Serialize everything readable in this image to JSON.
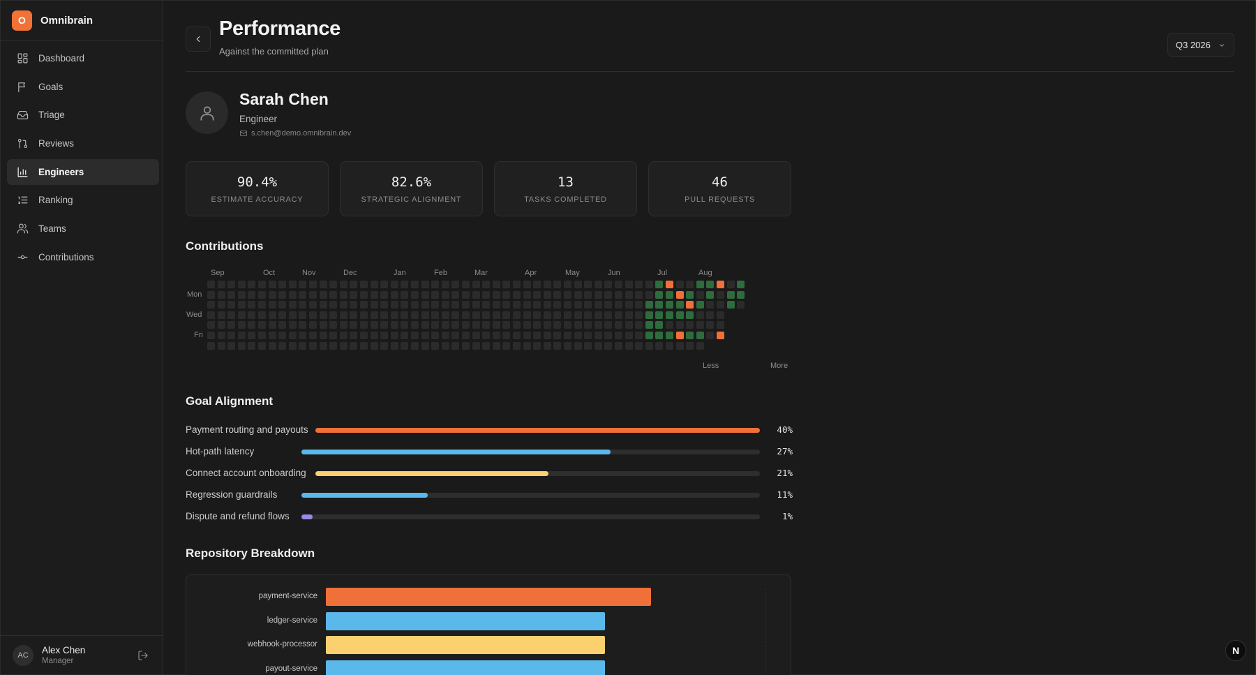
{
  "app": {
    "logo_letter": "O",
    "name": "Omnibrain"
  },
  "sidebar": {
    "items": [
      {
        "label": "Dashboard",
        "icon": "grid-icon",
        "active": false
      },
      {
        "label": "Goals",
        "icon": "flag-icon",
        "active": false
      },
      {
        "label": "Triage",
        "icon": "inbox-icon",
        "active": false
      },
      {
        "label": "Reviews",
        "icon": "git-pull-request-icon",
        "active": false
      },
      {
        "label": "Engineers",
        "icon": "bar-chart-icon",
        "active": true
      },
      {
        "label": "Ranking",
        "icon": "list-ordered-icon",
        "active": false
      },
      {
        "label": "Teams",
        "icon": "users-icon",
        "active": false
      },
      {
        "label": "Contributions",
        "icon": "git-commit-icon",
        "active": false
      }
    ],
    "user": {
      "initials": "AC",
      "name": "Alex Chen",
      "role": "Manager"
    }
  },
  "header": {
    "title": "Performance",
    "subtitle": "Against the committed plan",
    "period": "Q3 2026"
  },
  "profile": {
    "name": "Sarah Chen",
    "role": "Engineer",
    "email": "s.chen@demo.omnibrain.dev"
  },
  "stats": [
    {
      "value": "90.4%",
      "label": "Estimate Accuracy"
    },
    {
      "value": "82.6%",
      "label": "Strategic Alignment"
    },
    {
      "value": "13",
      "label": "Tasks Completed"
    },
    {
      "value": "46",
      "label": "Pull Requests"
    }
  ],
  "contributions": {
    "title": "Contributions",
    "months": [
      "Sep",
      "Oct",
      "Nov",
      "Dec",
      "Jan",
      "Feb",
      "Mar",
      "Apr",
      "May",
      "Jun",
      "Jul",
      "Aug"
    ],
    "day_labels": [
      "Mon",
      "Wed",
      "Fri"
    ],
    "legend_less": "Less",
    "legend_more": "More",
    "colors": {
      "empty": "#2b2b2b",
      "green": "#2e6b3d",
      "orange": "#ef7038"
    },
    "weeks": 52,
    "active_cells": [
      {
        "week": 43,
        "day": 2,
        "level": "green"
      },
      {
        "week": 43,
        "day": 3,
        "level": "green"
      },
      {
        "week": 43,
        "day": 4,
        "level": "green"
      },
      {
        "week": 43,
        "day": 5,
        "level": "green"
      },
      {
        "week": 44,
        "day": 0,
        "level": "green"
      },
      {
        "week": 44,
        "day": 1,
        "level": "green"
      },
      {
        "week": 44,
        "day": 2,
        "level": "green"
      },
      {
        "week": 44,
        "day": 3,
        "level": "green"
      },
      {
        "week": 44,
        "day": 4,
        "level": "green"
      },
      {
        "week": 44,
        "day": 5,
        "level": "green"
      },
      {
        "week": 45,
        "day": 0,
        "level": "orange"
      },
      {
        "week": 45,
        "day": 1,
        "level": "green"
      },
      {
        "week": 45,
        "day": 2,
        "level": "green"
      },
      {
        "week": 45,
        "day": 3,
        "level": "green"
      },
      {
        "week": 45,
        "day": 5,
        "level": "green"
      },
      {
        "week": 46,
        "day": 1,
        "level": "orange"
      },
      {
        "week": 46,
        "day": 2,
        "level": "green"
      },
      {
        "week": 46,
        "day": 3,
        "level": "green"
      },
      {
        "week": 46,
        "day": 5,
        "level": "orange"
      },
      {
        "week": 47,
        "day": 1,
        "level": "green"
      },
      {
        "week": 47,
        "day": 2,
        "level": "orange"
      },
      {
        "week": 47,
        "day": 3,
        "level": "green"
      },
      {
        "week": 47,
        "day": 5,
        "level": "green"
      },
      {
        "week": 48,
        "day": 0,
        "level": "green"
      },
      {
        "week": 48,
        "day": 2,
        "level": "green"
      },
      {
        "week": 48,
        "day": 5,
        "level": "green"
      },
      {
        "week": 49,
        "day": 0,
        "level": "green"
      },
      {
        "week": 49,
        "day": 1,
        "level": "green"
      },
      {
        "week": 50,
        "day": 0,
        "level": "orange"
      },
      {
        "week": 50,
        "day": 5,
        "level": "orange"
      },
      {
        "week": 51,
        "day": 1,
        "level": "green"
      },
      {
        "week": 51,
        "day": 2,
        "level": "green"
      },
      {
        "week": 52,
        "day": 0,
        "level": "green"
      },
      {
        "week": 52,
        "day": 1,
        "level": "green"
      }
    ]
  },
  "goal_alignment": {
    "title": "Goal Alignment",
    "items": [
      {
        "label": "Payment routing and payouts",
        "value": 40,
        "fill_fraction": 1.0,
        "color": "#ef7038"
      },
      {
        "label": "Hot-path latency",
        "value": 27,
        "fill_fraction": 0.675,
        "color": "#5bb8ea"
      },
      {
        "label": "Connect account onboarding",
        "value": 21,
        "fill_fraction": 0.525,
        "color": "#fbd06f"
      },
      {
        "label": "Regression guardrails",
        "value": 11,
        "fill_fraction": 0.275,
        "color": "#5bb8ea"
      },
      {
        "label": "Dispute and refund flows",
        "value": 1,
        "fill_fraction": 0.025,
        "color": "#9b88e8"
      }
    ]
  },
  "repository_breakdown": {
    "title": "Repository Breakdown",
    "items": [
      {
        "label": "payment-service",
        "value": 0.7,
        "color": "#ef7038"
      },
      {
        "label": "ledger-service",
        "value": 0.6,
        "color": "#5bb8ea"
      },
      {
        "label": "webhook-processor",
        "value": 0.6,
        "color": "#fbd06f"
      },
      {
        "label": "payout-service",
        "value": 0.6,
        "color": "#5bb8ea"
      }
    ]
  },
  "fab": {
    "letter": "N"
  }
}
